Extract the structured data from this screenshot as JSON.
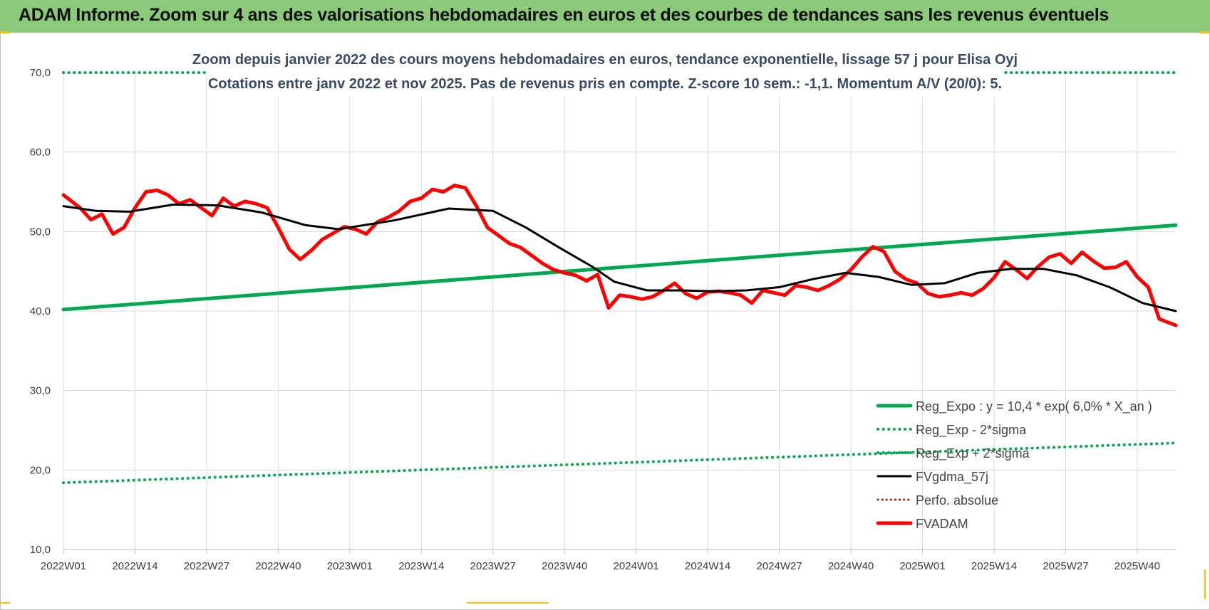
{
  "header": {
    "title": "ADAM Informe. Zoom sur 4 ans des valorisations hebdomadaires en euros et des courbes de tendances sans les revenus éventuels"
  },
  "colors": {
    "header_bg": "#8cc97a",
    "reg_expo": "#00a84f",
    "fvgdma": "#000000",
    "fvadam": "#ff0000",
    "perfo": "#e00000"
  },
  "chart_data": {
    "type": "line",
    "subtitle_lines": [
      "Zoom depuis janvier 2022 des cours moyens hebdomadaires en euros, tendance exponentielle, lissage 57 j pour Elisa Oyj",
      "Cotations entre janv 2022 et nov 2025. Pas de revenus pris en compte. Z-score 10 sem.: -1,1. Momentum A/V (20/0): 5."
    ],
    "ylim": [
      10,
      70
    ],
    "yticks": [
      "10,0",
      "20,0",
      "30,0",
      "40,0",
      "50,0",
      "60,0",
      "70,0"
    ],
    "grid": true,
    "legend_position": "bottom-right",
    "x_tick_labels": [
      "2022W01",
      "2022W14",
      "2022W27",
      "2022W40",
      "2023W01",
      "2023W14",
      "2023W27",
      "2023W40",
      "2024W01",
      "2024W14",
      "2024W27",
      "2024W40",
      "2025W01",
      "2025W14",
      "2025W27",
      "2025W40"
    ],
    "n_weeks": 203,
    "series": [
      {
        "name": "Reg_Expo : y = 10,4 * exp( 6,0% * X_an )",
        "style": "thick-solid",
        "color": "#00a84f",
        "x": [
          0,
          202
        ],
        "y": [
          40.2,
          50.8
        ]
      },
      {
        "name": "Reg_Exp - 2*sigma",
        "style": "dotted",
        "color": "#00a84f",
        "x": [
          0,
          202
        ],
        "y": [
          18.4,
          23.4
        ]
      },
      {
        "name": "Reg_Exp + 2*sigma",
        "style": "dotted",
        "color": "#00a84f",
        "x": [
          0,
          202
        ],
        "y": [
          70.0,
          70.0
        ]
      },
      {
        "name": "FVgdma_57j",
        "style": "solid",
        "color": "#000000",
        "x": [
          0,
          6,
          12,
          20,
          28,
          36,
          44,
          50,
          60,
          70,
          78,
          84,
          90,
          96,
          100,
          106,
          112,
          118,
          124,
          130,
          136,
          142,
          148,
          154,
          160,
          166,
          172,
          178,
          184,
          190,
          196,
          202
        ],
        "y": [
          53.2,
          52.6,
          52.5,
          53.4,
          53.3,
          52.4,
          50.8,
          50.3,
          51.4,
          52.9,
          52.6,
          50.5,
          48.0,
          45.6,
          43.7,
          42.6,
          42.6,
          42.5,
          42.6,
          43.0,
          44.0,
          44.8,
          44.3,
          43.3,
          43.5,
          44.8,
          45.3,
          45.3,
          44.5,
          43.0,
          41.0,
          40.0
        ]
      },
      {
        "name": "Perfo. absolue",
        "style": "dotted",
        "color": "#e00000",
        "x": [],
        "y": []
      },
      {
        "name": "FVADAM",
        "style": "thick-solid",
        "color": "#ff0000",
        "x": [
          0,
          3,
          5,
          7,
          9,
          11,
          13,
          15,
          17,
          19,
          21,
          23,
          25,
          27,
          29,
          31,
          33,
          35,
          37,
          39,
          41,
          43,
          45,
          47,
          49,
          51,
          53,
          55,
          57,
          59,
          61,
          63,
          65,
          67,
          69,
          71,
          73,
          75,
          77,
          79,
          81,
          83,
          85,
          87,
          89,
          91,
          93,
          95,
          97,
          99,
          101,
          103,
          105,
          107,
          109,
          111,
          113,
          115,
          117,
          119,
          121,
          123,
          125,
          127,
          129,
          131,
          133,
          135,
          137,
          139,
          141,
          143,
          145,
          147,
          149,
          151,
          153,
          155,
          157,
          159,
          161,
          163,
          165,
          167,
          169,
          171,
          173,
          175,
          177,
          179,
          181,
          183,
          185,
          187,
          189,
          191,
          193,
          195,
          197,
          199,
          202
        ],
        "y": [
          54.6,
          53.0,
          51.5,
          52.2,
          49.7,
          50.5,
          53.0,
          55.0,
          55.2,
          54.6,
          53.5,
          54.0,
          53.0,
          52.0,
          54.2,
          53.2,
          53.8,
          53.5,
          53.0,
          50.5,
          47.8,
          46.5,
          47.6,
          49.0,
          49.8,
          50.6,
          50.3,
          49.7,
          51.2,
          51.8,
          52.6,
          53.8,
          54.2,
          55.3,
          55.0,
          55.8,
          55.5,
          53.2,
          50.5,
          49.5,
          48.5,
          48.0,
          47.0,
          46.0,
          45.2,
          44.8,
          44.5,
          43.8,
          44.6,
          40.4,
          42.0,
          41.8,
          41.5,
          41.8,
          42.6,
          43.5,
          42.2,
          41.6,
          42.4,
          42.5,
          42.3,
          42.0,
          41.0,
          42.6,
          42.3,
          42.0,
          43.2,
          43.0,
          42.6,
          43.2,
          44.0,
          45.2,
          46.8,
          48.1,
          47.5,
          45.0,
          44.0,
          43.5,
          42.2,
          41.8,
          42.0,
          42.3,
          42.0,
          42.8,
          44.2,
          46.2,
          45.2,
          44.1,
          45.6,
          46.8,
          47.2,
          46.0,
          47.4,
          46.3,
          45.4,
          45.5,
          46.2,
          44.3,
          43.0,
          39.0,
          38.2
        ]
      }
    ]
  }
}
